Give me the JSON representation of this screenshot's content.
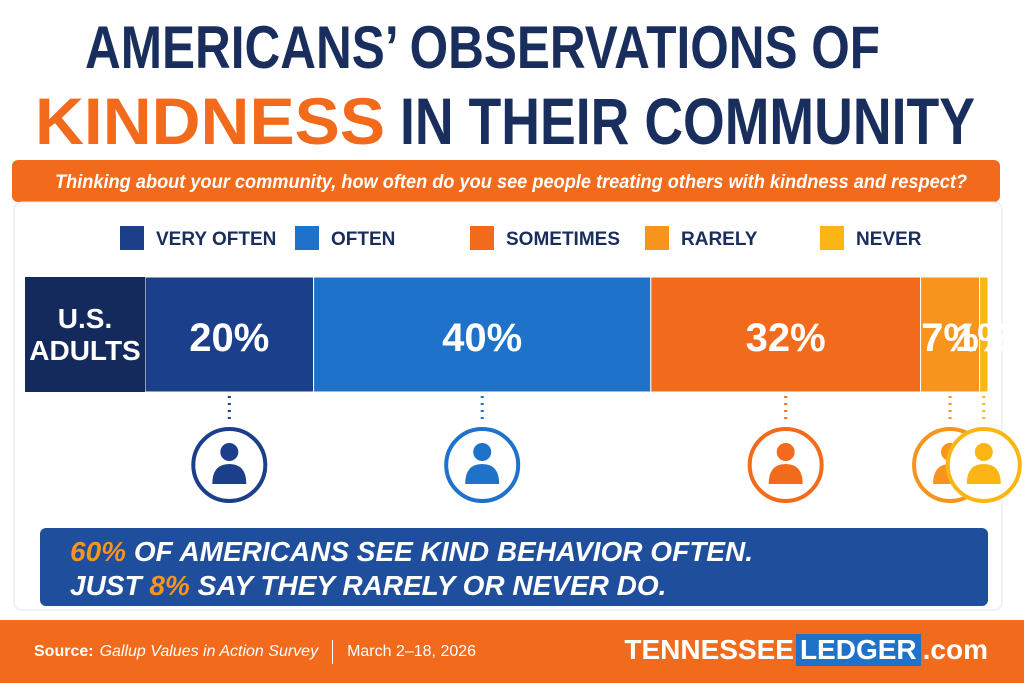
{
  "chart_data": {
    "type": "stacked-bar",
    "title": "AMERICANS’ OBSERVATIONS OF",
    "title_highlight": "KINDNESS",
    "title_rest": "IN THEIR COMMUNITY",
    "subtitle": "Thinking about your community, how often do you see people treating others with kindness and respect?",
    "categories": [
      "U.S. ADULTS"
    ],
    "series": [
      {
        "name": "VERY OFTEN",
        "color": "#1b3f8b",
        "values": [
          20
        ],
        "value_labels": [
          "20%"
        ]
      },
      {
        "name": "OFTEN",
        "color": "#1f72c9",
        "values": [
          40
        ],
        "value_labels": [
          "40%"
        ]
      },
      {
        "name": "SOMETIMES",
        "color": "#f26b1d",
        "values": [
          32
        ],
        "value_labels": [
          "32%"
        ]
      },
      {
        "name": "RARELY",
        "color": "#f7941d",
        "values": [
          7
        ],
        "value_labels": [
          "7%"
        ]
      },
      {
        "name": "NEVER",
        "color": "#fbb615",
        "values": [
          1
        ],
        "value_labels": [
          "1%"
        ]
      }
    ],
    "xlim": [
      0,
      100
    ],
    "annotation": {
      "line1_figure": "60%",
      "line1_text": " OF AMERICANS SEE KIND BEHAVIOR OFTEN.",
      "line2_start": "JUST ",
      "line2_figure": "8%",
      "line2_text": " SAY THEY RARELY OR NEVER DO."
    },
    "footer": {
      "source_label": "Source:",
      "source": "Gallup Values in Action Survey",
      "dates": "March 2–18, 2026",
      "brand_1": "TENNESSEE",
      "brand_2": "LEDGER",
      "brand_3": ".com"
    }
  }
}
